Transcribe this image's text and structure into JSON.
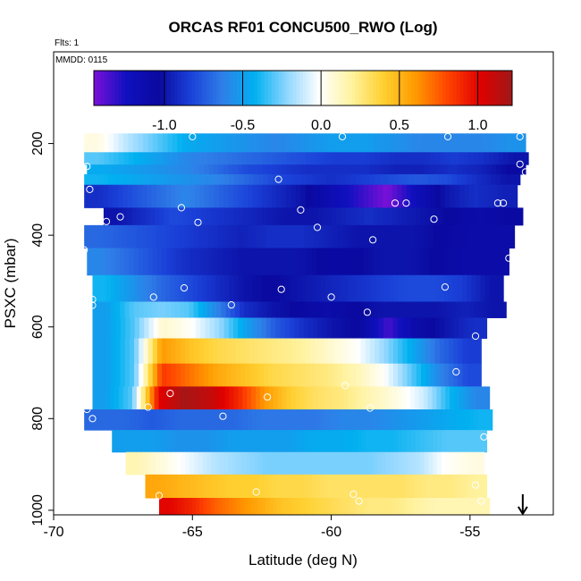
{
  "chart_data": {
    "type": "heatmap",
    "title": "ORCAS RF01 CONCU500_RWO (Log)",
    "flights_label": "Flts: 1",
    "date_label": "MMDD: 0115",
    "xlabel": "Latitude (deg N)",
    "ylabel": "PSXC (mbar)",
    "xlim": [
      -70,
      -52
    ],
    "ylim": [
      1010,
      0
    ],
    "x_ticks": [
      -70,
      -65,
      -60,
      -55
    ],
    "y_ticks": [
      200,
      400,
      600,
      800,
      1000
    ],
    "colorbar": {
      "range": [
        -1.45,
        1.22
      ],
      "ticks": [
        -1.0,
        -0.5,
        0.0,
        0.5,
        1.0
      ],
      "tick_labels": [
        "-1.0",
        "-0.5",
        "0.0",
        "0.5",
        "1.0"
      ],
      "colors": [
        "#7a10d8",
        "#1010c0",
        "#0a0aa0",
        "#1a40d8",
        "#2f7fe8",
        "#00b0f0",
        "#8fd6ff",
        "#ffffff",
        "#fff3a0",
        "#ffd030",
        "#ff9900",
        "#ff4400",
        "#e00000",
        "#a01818"
      ]
    },
    "layers": [
      {
        "p_top": 178,
        "p_bot": 219,
        "x_start": -68.9,
        "x_end": -53.0,
        "values": [
          0.05,
          -0.15,
          -0.3,
          -0.45,
          -0.5,
          -0.55,
          -0.6,
          -0.55,
          -0.5,
          -0.5,
          -0.55,
          -0.6,
          -0.6,
          -0.6,
          -0.55
        ]
      },
      {
        "p_top": 219,
        "p_bot": 246,
        "x_start": -68.9,
        "x_end": -52.9,
        "values": [
          -0.3,
          -0.4,
          -0.5,
          -0.6,
          -0.65,
          -0.7,
          -0.75,
          -0.8,
          -0.85,
          -0.85,
          -0.9,
          -0.9,
          -0.85,
          -0.9,
          -1.0
        ]
      },
      {
        "p_top": 246,
        "p_bot": 267,
        "x_start": -68.8,
        "x_end": -53.0,
        "values": [
          -0.45,
          -0.5,
          -0.55,
          -0.6,
          -0.7,
          -0.8,
          -0.85,
          -0.9,
          -0.9,
          -0.9,
          -0.95,
          -0.95,
          -0.9,
          -0.95,
          -1.05
        ]
      },
      {
        "p_top": 267,
        "p_bot": 290,
        "x_start": -68.9,
        "x_end": -53.2,
        "values": [
          -0.4,
          -0.45,
          -0.5,
          -0.55,
          -0.6,
          -0.7,
          -0.8,
          -0.85,
          -0.9,
          -0.85,
          -0.8,
          -0.75,
          -0.8,
          -0.9,
          -1.0
        ]
      },
      {
        "p_top": 290,
        "p_bot": 340,
        "x_start": -68.9,
        "x_end": -53.3,
        "values": [
          -0.9,
          -0.8,
          -0.7,
          -0.6,
          -0.7,
          -0.8,
          -0.9,
          -1.0,
          -1.15,
          -1.3,
          -1.45,
          -1.2,
          -1.0,
          -0.9,
          -0.95
        ]
      },
      {
        "p_top": 340,
        "p_bot": 378,
        "x_start": -68.2,
        "x_end": -53.1,
        "values": [
          -1.0,
          -0.9,
          -0.8,
          -0.85,
          -0.9,
          -0.95,
          -1.0,
          -1.0,
          -0.95,
          -0.9,
          -0.95,
          -1.0,
          -1.05,
          -1.1,
          -1.05
        ]
      },
      {
        "p_top": 378,
        "p_bot": 428,
        "x_start": -68.9,
        "x_end": -53.4,
        "values": [
          -0.7,
          -0.75,
          -0.8,
          -0.85,
          -0.9,
          -0.95,
          -0.9,
          -0.9,
          -0.95,
          -1.0,
          -1.0,
          -1.0,
          -1.05,
          -1.1,
          -1.1
        ]
      },
      {
        "p_top": 428,
        "p_bot": 487,
        "x_start": -68.8,
        "x_end": -53.6,
        "values": [
          -0.6,
          -0.7,
          -0.8,
          -0.9,
          -0.95,
          -1.0,
          -1.0,
          -1.0,
          -1.05,
          -1.05,
          -1.0,
          -1.0,
          -1.05,
          -1.1,
          -1.1
        ]
      },
      {
        "p_top": 487,
        "p_bot": 545,
        "x_start": -68.6,
        "x_end": -53.8,
        "values": [
          -0.4,
          -0.55,
          -0.7,
          -0.8,
          -0.9,
          -1.0,
          -1.05,
          -1.0,
          -0.95,
          -0.9,
          -0.85,
          -0.8,
          -0.8,
          -0.85,
          -1.0
        ]
      },
      {
        "p_top": 545,
        "p_bot": 580,
        "x_start": -68.6,
        "x_end": -53.7,
        "values": [
          -0.5,
          -0.3,
          -0.25,
          -0.3,
          -0.6,
          -0.9,
          -1.0,
          -1.05,
          -1.1,
          -1.05,
          -1.0,
          -1.0,
          -1.0,
          -0.95,
          -1.0
        ]
      },
      {
        "p_top": 580,
        "p_bot": 625,
        "x_start": -68.6,
        "x_end": -54.4,
        "values": [
          -0.5,
          -0.3,
          0.1,
          0.0,
          -0.2,
          -0.5,
          -0.75,
          -0.9,
          -1.0,
          -1.05,
          -1.35,
          -1.1,
          -1.0,
          -0.9
        ]
      },
      {
        "p_top": 625,
        "p_bot": 680,
        "x_start": -68.6,
        "x_end": -54.6,
        "values": [
          -0.5,
          -0.3,
          0.6,
          0.45,
          0.35,
          0.3,
          0.25,
          0.2,
          0.1,
          0.0,
          -0.2,
          -0.45,
          -0.7,
          -0.85
        ]
      },
      {
        "p_top": 680,
        "p_bot": 730,
        "x_start": -68.6,
        "x_end": -54.6,
        "values": [
          -0.5,
          -0.3,
          0.85,
          0.7,
          0.55,
          0.45,
          0.35,
          0.3,
          0.25,
          0.15,
          0.0,
          -0.3,
          -0.6,
          -0.8
        ]
      },
      {
        "p_top": 730,
        "p_bot": 780,
        "x_start": -68.6,
        "x_end": -54.3,
        "values": [
          -0.5,
          -0.3,
          1.0,
          1.2,
          1.1,
          0.9,
          0.6,
          0.4,
          0.3,
          0.25,
          0.15,
          0.05,
          -0.1,
          -0.4,
          -0.6
        ]
      },
      {
        "p_top": 780,
        "p_bot": 825,
        "x_start": -68.9,
        "x_end": -54.2,
        "values": [
          -0.7,
          -0.7,
          -0.75,
          -0.7,
          -0.7,
          -0.7,
          -0.65,
          -0.65,
          -0.65,
          -0.6,
          -0.6,
          -0.55,
          -0.5,
          -0.45,
          -0.4
        ]
      },
      {
        "p_top": 825,
        "p_bot": 873,
        "x_start": -67.9,
        "x_end": -54.4,
        "values": [
          -0.5,
          -0.5,
          -0.55,
          -0.55,
          -0.5,
          -0.5,
          -0.5,
          -0.45,
          -0.45,
          -0.4,
          -0.4,
          -0.35,
          -0.3,
          -0.3
        ]
      },
      {
        "p_top": 873,
        "p_bot": 922,
        "x_start": -67.4,
        "x_end": -54.5,
        "values": [
          0.15,
          0.05,
          -0.05,
          -0.15,
          -0.2,
          -0.25,
          -0.25,
          -0.25,
          -0.25,
          -0.25,
          -0.2,
          -0.15,
          0.0,
          0.05
        ]
      },
      {
        "p_top": 922,
        "p_bot": 973,
        "x_start": -66.7,
        "x_end": -54.4,
        "values": [
          0.55,
          0.5,
          0.45,
          0.4,
          0.4,
          0.35,
          0.35,
          0.3,
          0.3,
          0.3,
          0.3,
          0.25,
          0.25,
          0.2
        ]
      },
      {
        "p_top": 973,
        "p_bot": 1010,
        "x_start": -66.2,
        "x_end": -54.3,
        "values": [
          1.0,
          0.9,
          0.75,
          0.65,
          0.55,
          0.45,
          0.4,
          0.35,
          0.3,
          0.25,
          0.25,
          0.2,
          0.15,
          0.15,
          0.15
        ]
      }
    ],
    "points": [
      {
        "x": -65.0,
        "y": 185
      },
      {
        "x": -59.6,
        "y": 185
      },
      {
        "x": -55.8,
        "y": 185
      },
      {
        "x": -53.2,
        "y": 185
      },
      {
        "x": -68.8,
        "y": 250
      },
      {
        "x": -53.2,
        "y": 245
      },
      {
        "x": -53.0,
        "y": 262
      },
      {
        "x": -61.9,
        "y": 278
      },
      {
        "x": -68.7,
        "y": 300
      },
      {
        "x": -65.4,
        "y": 340
      },
      {
        "x": -61.1,
        "y": 345
      },
      {
        "x": -57.7,
        "y": 330
      },
      {
        "x": -57.3,
        "y": 330
      },
      {
        "x": -56.3,
        "y": 365
      },
      {
        "x": -54.0,
        "y": 330
      },
      {
        "x": -53.8,
        "y": 330
      },
      {
        "x": -67.6,
        "y": 360
      },
      {
        "x": -68.1,
        "y": 370
      },
      {
        "x": -64.8,
        "y": 372
      },
      {
        "x": -60.5,
        "y": 383
      },
      {
        "x": -58.5,
        "y": 410
      },
      {
        "x": -68.9,
        "y": 432
      },
      {
        "x": -53.6,
        "y": 450
      },
      {
        "x": -66.4,
        "y": 535
      },
      {
        "x": -65.3,
        "y": 515
      },
      {
        "x": -61.8,
        "y": 518
      },
      {
        "x": -60.0,
        "y": 535
      },
      {
        "x": -55.9,
        "y": 513
      },
      {
        "x": -68.6,
        "y": 540
      },
      {
        "x": -68.6,
        "y": 553
      },
      {
        "x": -63.6,
        "y": 552
      },
      {
        "x": -58.7,
        "y": 568
      },
      {
        "x": -54.8,
        "y": 620
      },
      {
        "x": -55.5,
        "y": 698
      },
      {
        "x": -59.5,
        "y": 728
      },
      {
        "x": -62.3,
        "y": 753
      },
      {
        "x": -65.8,
        "y": 745
      },
      {
        "x": -66.6,
        "y": 775
      },
      {
        "x": -68.8,
        "y": 780
      },
      {
        "x": -68.6,
        "y": 800
      },
      {
        "x": -63.9,
        "y": 795
      },
      {
        "x": -58.6,
        "y": 777
      },
      {
        "x": -54.5,
        "y": 840
      },
      {
        "x": -54.8,
        "y": 945
      },
      {
        "x": -54.6,
        "y": 980
      },
      {
        "x": -59.2,
        "y": 965
      },
      {
        "x": -59.0,
        "y": 980
      },
      {
        "x": -62.7,
        "y": 960
      },
      {
        "x": -66.2,
        "y": 968
      }
    ],
    "arrow_marker": {
      "x": -53.1,
      "y": 1000,
      "direction": "down"
    }
  }
}
